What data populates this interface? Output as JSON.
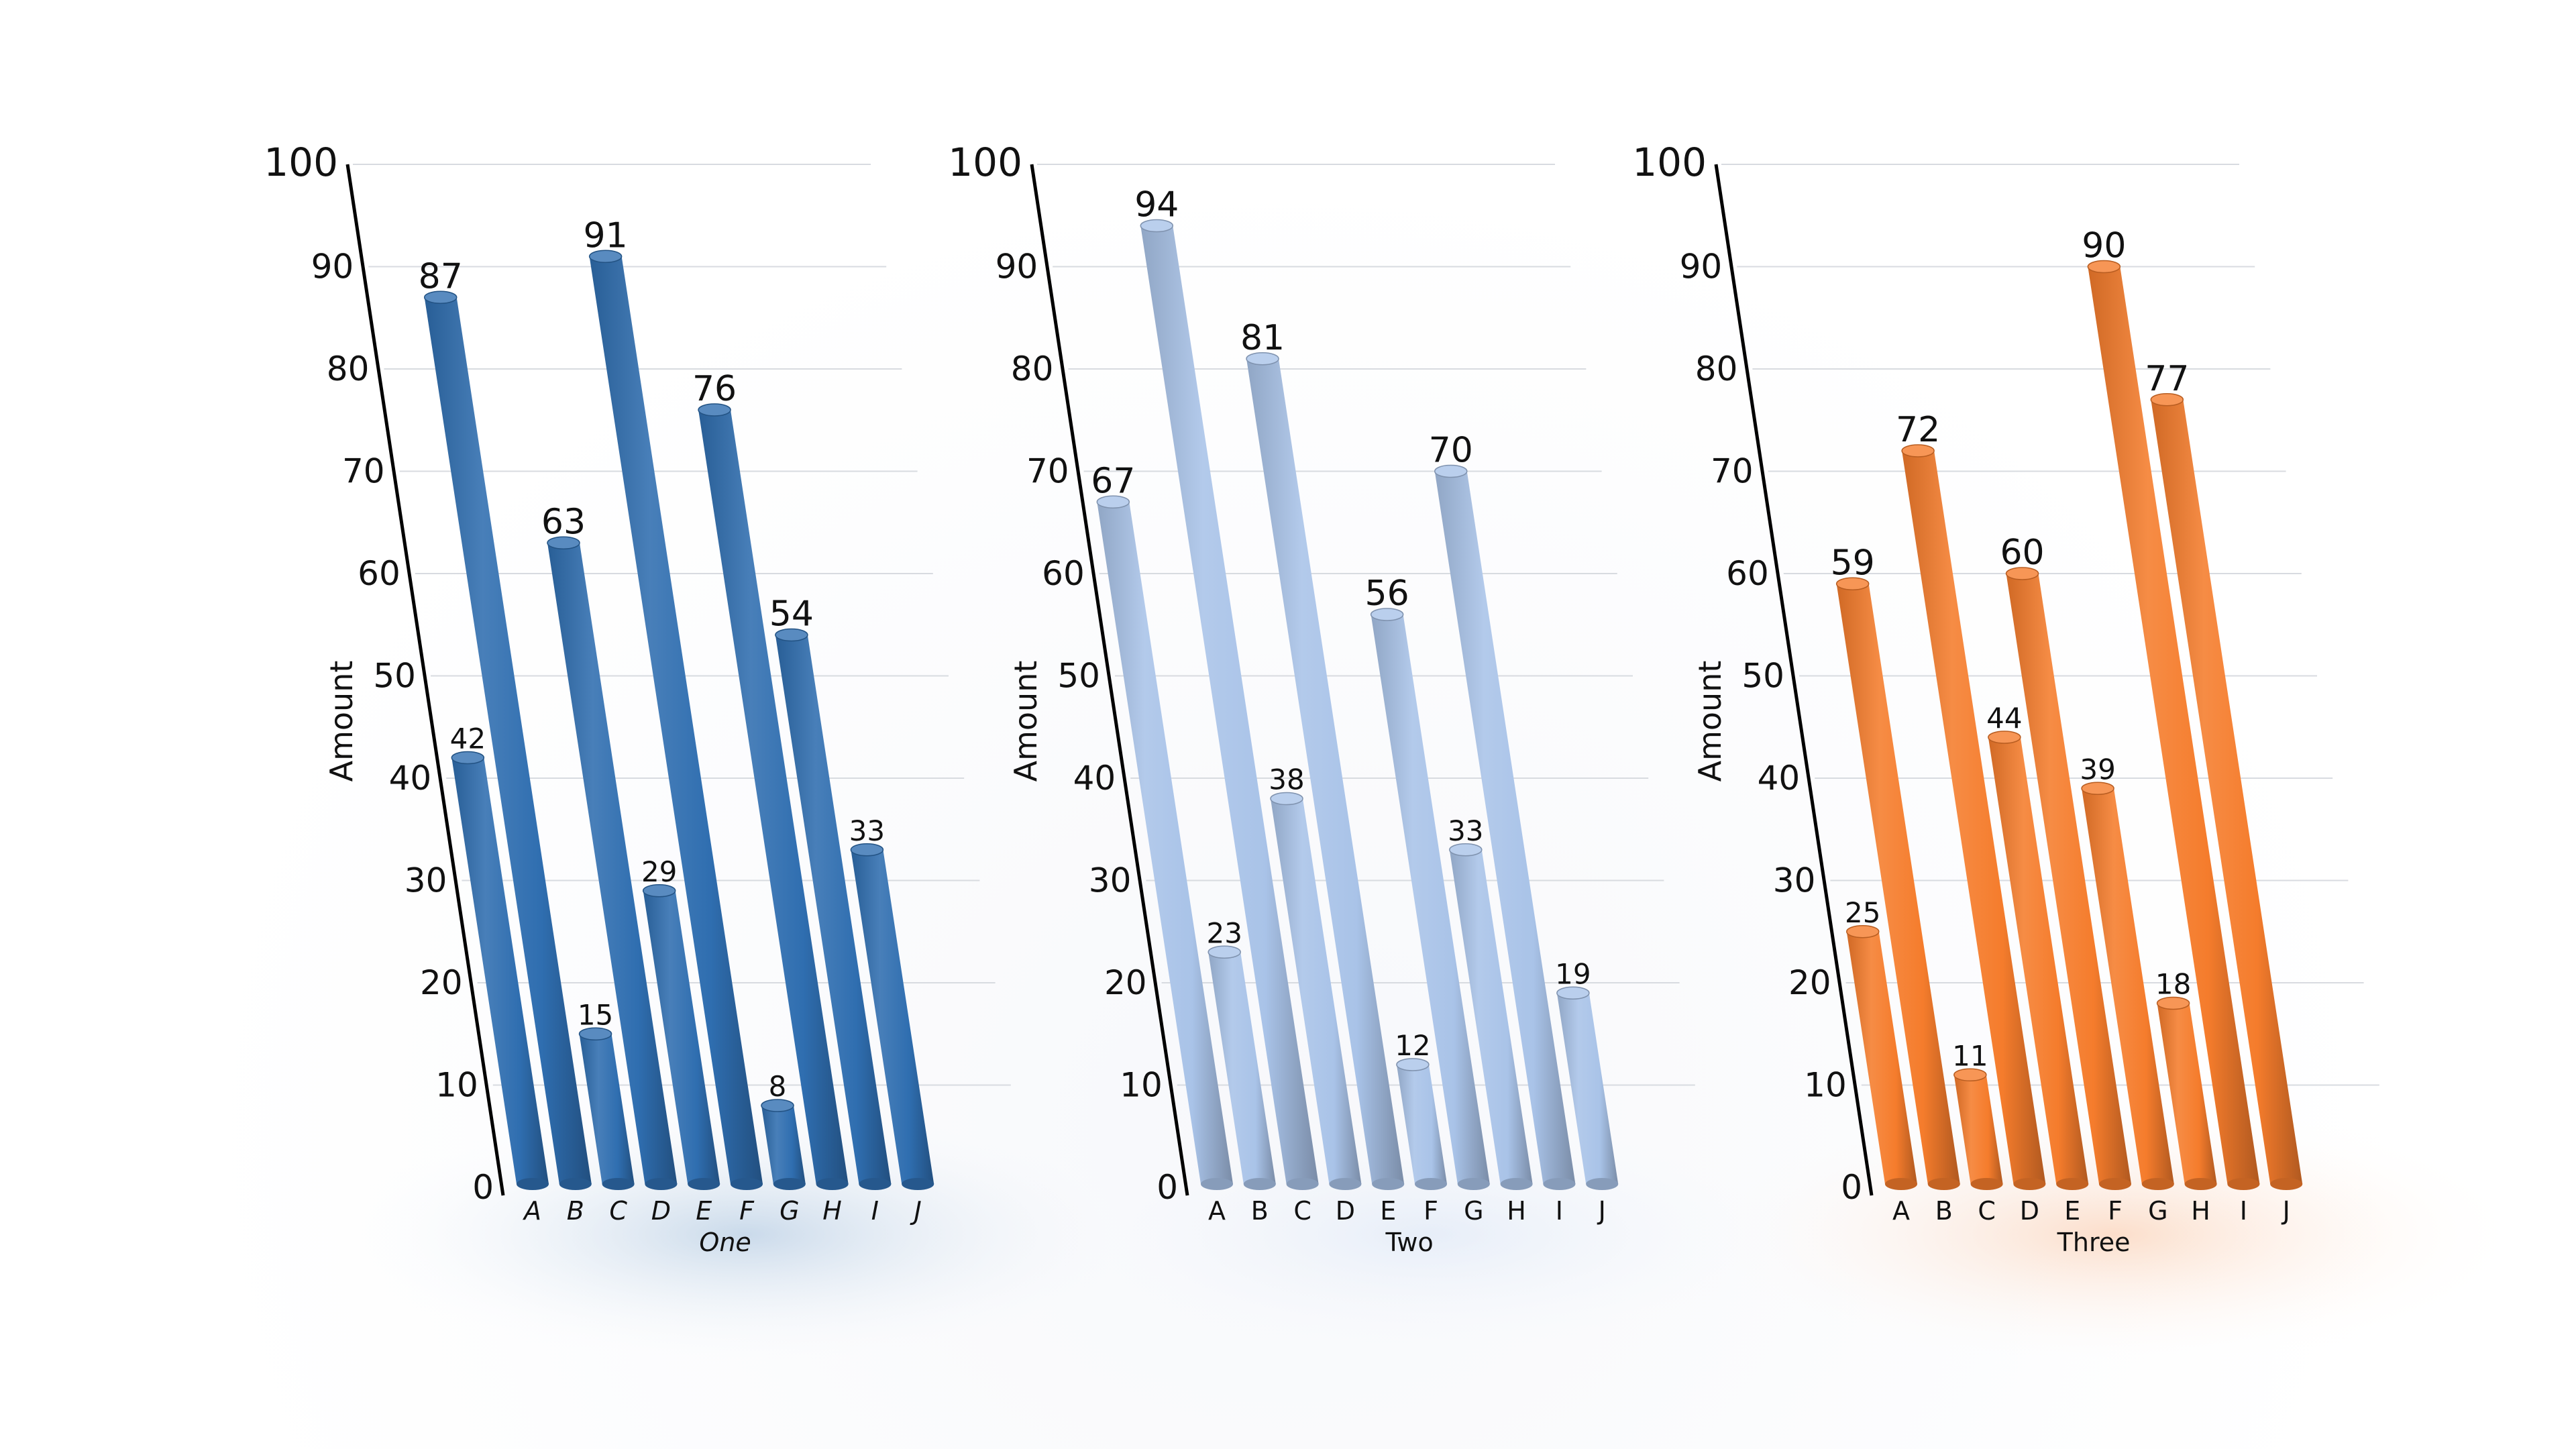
{
  "chart_data": [
    {
      "type": "bar",
      "title": "",
      "xlabel": "One",
      "ylabel": "Amount",
      "ylim": [
        0,
        100
      ],
      "yticks": [
        0,
        10,
        20,
        30,
        40,
        50,
        60,
        70,
        80,
        90,
        100
      ],
      "categories": [
        "A",
        "B",
        "C",
        "D",
        "E",
        "F",
        "G",
        "H",
        "I",
        "J"
      ],
      "values": [
        42,
        87,
        15,
        63,
        29,
        91,
        8,
        76,
        54,
        33
      ],
      "color": "#2f6eb0",
      "grid": true,
      "italic_labels": true
    },
    {
      "type": "bar",
      "title": "",
      "xlabel": "Two",
      "ylabel": "Amount",
      "ylim": [
        0,
        100
      ],
      "yticks": [
        0,
        10,
        20,
        30,
        40,
        50,
        60,
        70,
        80,
        90,
        100
      ],
      "categories": [
        "A",
        "B",
        "C",
        "D",
        "E",
        "F",
        "G",
        "H",
        "I",
        "J"
      ],
      "values": [
        67,
        23,
        94,
        38,
        81,
        12,
        56,
        33,
        70,
        19
      ],
      "color": "#a9c3e8",
      "grid": true,
      "italic_labels": false
    },
    {
      "type": "bar",
      "title": "",
      "xlabel": "Three",
      "ylabel": "Amount",
      "ylim": [
        0,
        100
      ],
      "yticks": [
        0,
        10,
        20,
        30,
        40,
        50,
        60,
        70,
        80,
        90,
        100
      ],
      "categories": [
        "A",
        "B",
        "C",
        "D",
        "E",
        "F",
        "G",
        "H",
        "I",
        "J"
      ],
      "values": [
        25,
        59,
        11,
        72,
        44,
        60,
        39,
        18,
        90,
        77
      ],
      "color": "#f57c2c",
      "grid": true,
      "italic_labels": false
    }
  ]
}
